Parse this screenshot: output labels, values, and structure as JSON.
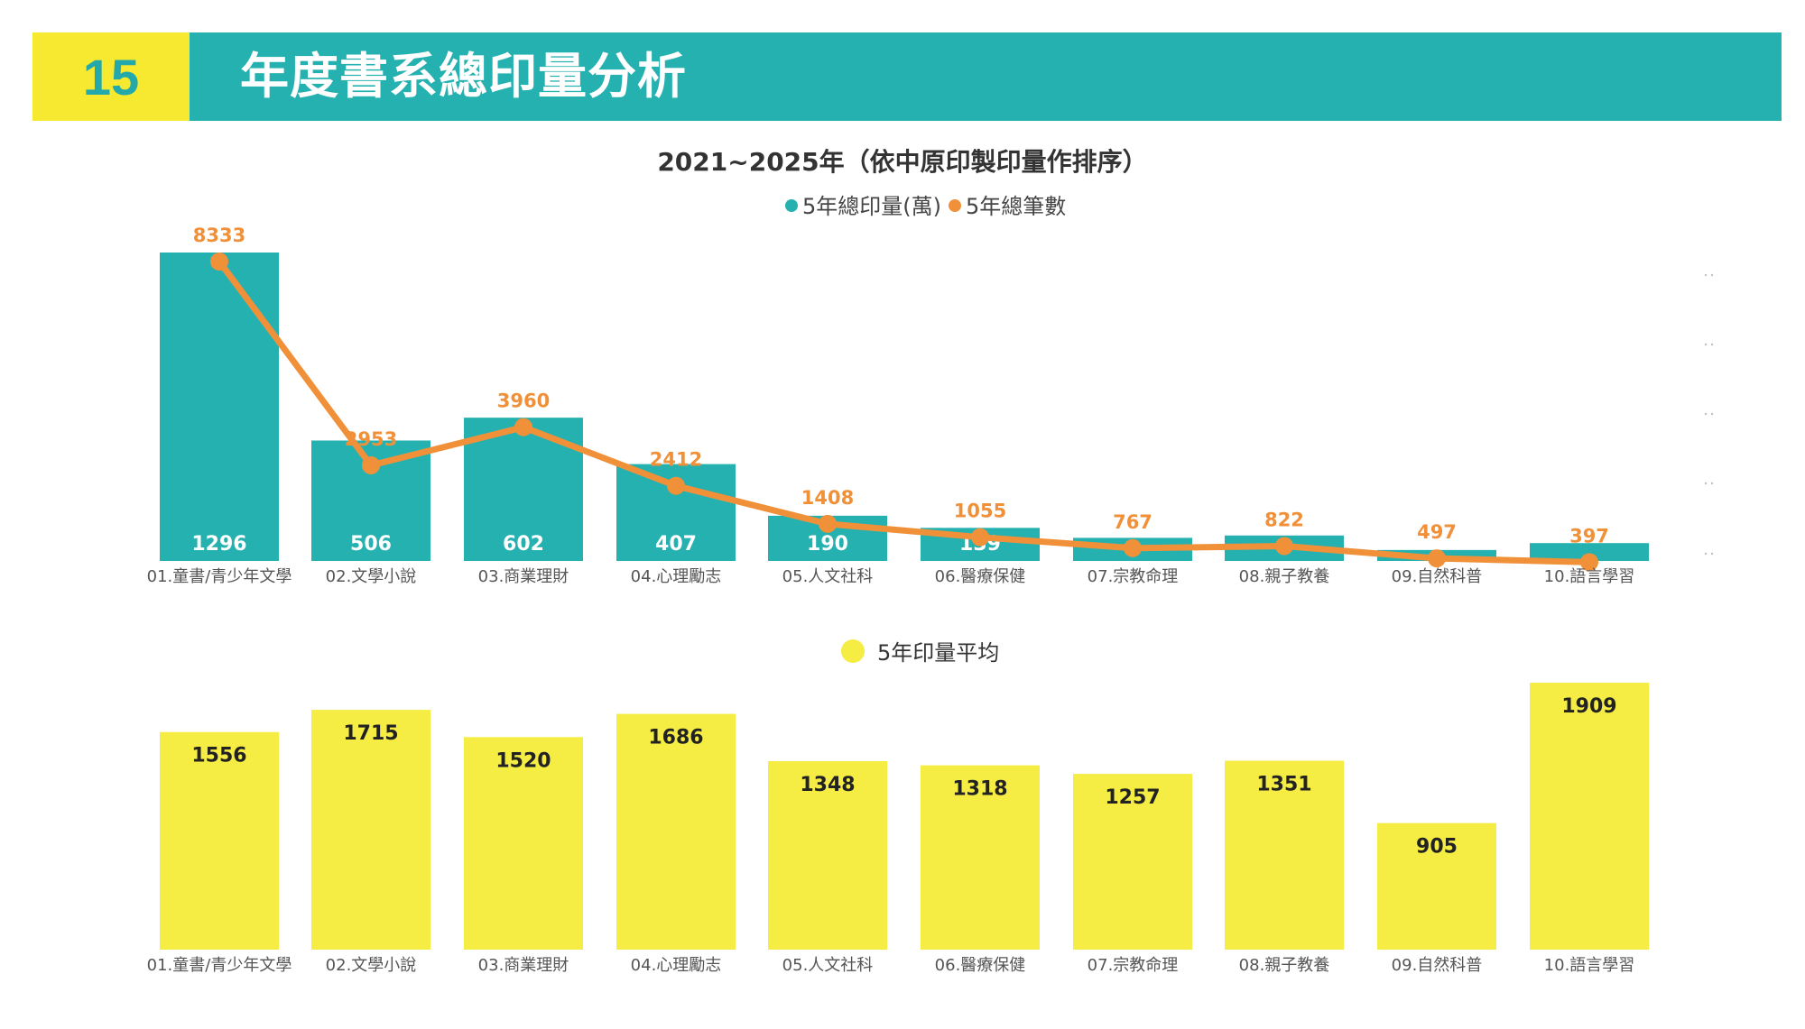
{
  "header": {
    "section_number": "15",
    "title": "年度書系總印量分析"
  },
  "colors": {
    "teal": "#25b1b0",
    "orange": "#f0913a",
    "yellow": "#f5ec44",
    "header_yellow": "#f6e930"
  },
  "chart_data": [
    {
      "type": "bar",
      "title": "2021~2025年（依中原印製印量作排序）",
      "categories": [
        "01.童書/青少年文學",
        "02.文學小說",
        "03.商業理財",
        "04.心理勵志",
        "05.人文社科",
        "06.醫療保健",
        "07.宗教命理",
        "08.親子教養",
        "09.自然科普",
        "10.語言學習"
      ],
      "series": [
        {
          "name": "5年總印量(萬)",
          "type": "bar",
          "color": "#25b1b0",
          "values": [
            1296,
            506,
            602,
            407,
            190,
            139,
            97,
            107,
            46,
            75
          ],
          "labels": [
            "1296",
            "506",
            "602",
            "407",
            "190",
            "139",
            "",
            "",
            "",
            ""
          ]
        },
        {
          "name": "5年總筆數",
          "type": "line",
          "color": "#f0913a",
          "values": [
            8333,
            2953,
            3960,
            2412,
            1408,
            1055,
            767,
            822,
            497,
            397
          ],
          "labels": [
            "8333",
            "2953",
            "3960",
            "2412",
            "1408",
            "1055",
            "767",
            "822",
            "497",
            "397"
          ]
        }
      ],
      "legend_position": "top-center",
      "grid": false
    },
    {
      "type": "bar",
      "categories": [
        "01.童書/青少年文學",
        "02.文學小說",
        "03.商業理財",
        "04.心理勵志",
        "05.人文社科",
        "06.醫療保健",
        "07.宗教命理",
        "08.親子教養",
        "09.自然科普",
        "10.語言學習"
      ],
      "series": [
        {
          "name": "5年印量平均",
          "color": "#f5ec44",
          "values": [
            1556,
            1715,
            1520,
            1686,
            1348,
            1318,
            1257,
            1351,
            905,
            1909
          ],
          "labels": [
            "1556",
            "1715",
            "1520",
            "1686",
            "1348",
            "1318",
            "1257",
            "1351",
            "905",
            "1909"
          ]
        }
      ],
      "legend_position": "top-center",
      "grid": false
    }
  ]
}
